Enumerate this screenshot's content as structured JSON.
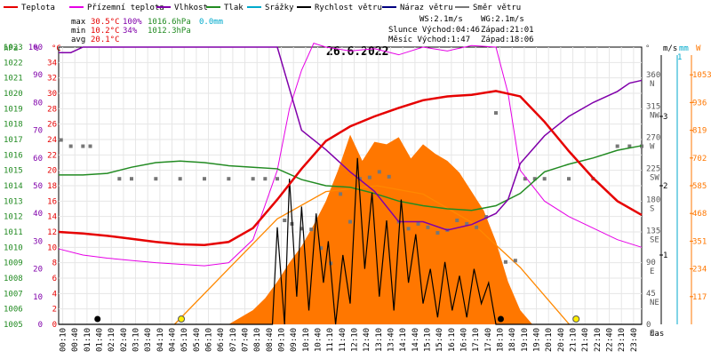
{
  "legend": [
    {
      "label": "Teplota",
      "color": "#e60000"
    },
    {
      "label": "Přízemní teplota",
      "color": "#e600e6"
    },
    {
      "label": "Vlhkost",
      "color": "#8000aa"
    },
    {
      "label": "Tlak",
      "color": "#228b22"
    },
    {
      "label": "Srážky",
      "color": "#00aacc"
    },
    {
      "label": "Rychlost větru",
      "color": "#000000"
    },
    {
      "label": "Náraz větru",
      "color": "#000080"
    },
    {
      "label": "Směr větru",
      "color": "#777777"
    }
  ],
  "stats": {
    "max_label": "max",
    "max_temp": "30.5°C",
    "max_hum": "100%",
    "max_press": "1016.6hPa",
    "max_rain": "0.0mm",
    "min_label": "min",
    "min_temp": "10.2°C",
    "min_hum": "34%",
    "min_press": "1012.3hPa",
    "avg_label": "avg",
    "avg_temp": "20.1°C"
  },
  "info": {
    "ws": "WS:2.1m/s",
    "wg": "WG:2.1m/s",
    "slunce": "Slunce Východ:04:46",
    "slunce_zapad": "Západ:21:01",
    "mesic": "Měsíc  Východ:1:47",
    "mesic_zapad": "Západ:18:06"
  },
  "axis_headers": {
    "hpa": "hPa",
    "pct": "%",
    "degc": "°C",
    "deg": "°",
    "ms": "m/s",
    "mm": "mm",
    "w": "W",
    "time": "čas"
  },
  "colors": {
    "temp": "#e60000",
    "ground": "#e600e6",
    "humidity": "#8000aa",
    "pressure": "#228b22",
    "rain": "#00aacc",
    "wind": "#000000",
    "gust": "#000080",
    "direction": "#777777",
    "solar": "#ff7700",
    "sunline": "#ff8800"
  },
  "chart_data": {
    "type": "line",
    "title": "26.6.2022",
    "x_labels": [
      "00:10",
      "00:40",
      "01:10",
      "01:40",
      "02:10",
      "02:40",
      "03:10",
      "03:40",
      "04:10",
      "04:40",
      "05:10",
      "05:40",
      "06:10",
      "06:40",
      "07:10",
      "07:40",
      "08:10",
      "08:40",
      "09:10",
      "09:40",
      "10:10",
      "10:40",
      "11:10",
      "11:40",
      "12:10",
      "12:40",
      "13:10",
      "13:40",
      "14:10",
      "14:40",
      "15:10",
      "15:40",
      "16:10",
      "16:40",
      "17:10",
      "17:40",
      "18:10",
      "18:40",
      "19:10",
      "19:40",
      "20:10",
      "20:40",
      "21:10",
      "21:40",
      "22:10",
      "22:40",
      "23:10",
      "23:40"
    ],
    "axes": {
      "pressure": {
        "min": 1005,
        "max": 1023,
        "ticks": [
          1005,
          1006,
          1007,
          1008,
          1009,
          1010,
          1011,
          1012,
          1013,
          1014,
          1015,
          1016,
          1017,
          1018,
          1019,
          1020,
          1021,
          1022,
          1023
        ]
      },
      "humidity": {
        "min": 0,
        "max": 100,
        "ticks": [
          0,
          10,
          20,
          30,
          40,
          50,
          60,
          70,
          80,
          90,
          100
        ]
      },
      "temperature": {
        "min": 0,
        "max": 36,
        "ticks": [
          0,
          2,
          4,
          6,
          8,
          10,
          12,
          14,
          16,
          18,
          20,
          22,
          24,
          26,
          28,
          30,
          32,
          34
        ]
      },
      "direction": {
        "ticks": [
          {
            "v": 0,
            "l": "0"
          },
          {
            "v": 45,
            "l": "45"
          },
          {
            "v": 90,
            "l": "90"
          },
          {
            "v": 135,
            "l": "135"
          },
          {
            "v": 180,
            "l": "180"
          },
          {
            "v": 225,
            "l": "225"
          },
          {
            "v": 270,
            "l": "270"
          },
          {
            "v": 315,
            "l": "315"
          },
          {
            "v": 360,
            "l": "360"
          }
        ],
        "compass": [
          "N",
          "NE",
          "E",
          "SE",
          "S",
          "SW",
          "W",
          "NW",
          "N"
        ]
      },
      "wind": {
        "min": 0,
        "max": 4,
        "ticks": [
          1,
          2,
          3
        ]
      },
      "rain_top": "1",
      "solar": {
        "min": 0,
        "max": 1170,
        "ticks": [
          117,
          234,
          351,
          468,
          585,
          702,
          819,
          936,
          1053
        ]
      }
    },
    "series": [
      {
        "key": "temp",
        "x": [
          0,
          1,
          2,
          3,
          4,
          5,
          6,
          7,
          8,
          9,
          10,
          11,
          12,
          13,
          14,
          15,
          16,
          17,
          18,
          19,
          20,
          21,
          22,
          23,
          24
        ],
        "y": [
          12.0,
          11.8,
          11.5,
          11.1,
          10.7,
          10.4,
          10.3,
          10.7,
          12.5,
          16.2,
          20.2,
          23.8,
          25.7,
          27.0,
          28.1,
          29.1,
          29.6,
          29.8,
          30.3,
          29.6,
          26.3,
          22.5,
          19.0,
          16.0,
          14.2
        ]
      },
      {
        "key": "ground",
        "x": [
          0,
          1,
          2,
          3,
          4,
          5,
          6,
          7,
          8,
          9,
          9.5,
          10,
          10.5,
          11,
          12,
          13,
          14,
          15,
          16,
          17,
          18,
          18.5,
          19,
          20,
          21,
          22,
          23,
          24
        ],
        "y": [
          9.8,
          9.0,
          8.6,
          8.3,
          8.0,
          7.8,
          7.6,
          8.0,
          11.0,
          20.0,
          28.0,
          33.0,
          36.5,
          36.0,
          35.5,
          35.8,
          35.0,
          36.0,
          35.5,
          36.2,
          36.0,
          30.0,
          20.0,
          16.0,
          14.0,
          12.5,
          11.0,
          10.0
        ]
      },
      {
        "key": "humidity",
        "x": [
          0,
          0.5,
          1,
          2,
          3,
          4,
          5,
          6,
          7,
          8,
          9,
          9.5,
          10,
          11,
          12,
          13,
          14,
          15,
          16,
          17,
          18,
          18.5,
          19,
          20,
          21,
          22,
          23,
          23.5,
          24
        ],
        "y": [
          98,
          98,
          100,
          100,
          100,
          100,
          100,
          100,
          100,
          100,
          100,
          85,
          70,
          63,
          55,
          48,
          37,
          37,
          34,
          36,
          40,
          45,
          58,
          68,
          75,
          80,
          84,
          87,
          88
        ]
      },
      {
        "key": "pressure",
        "x": [
          0,
          1,
          2,
          3,
          4,
          5,
          6,
          7,
          8,
          9,
          10,
          11,
          12,
          13,
          14,
          15,
          16,
          17,
          18,
          19,
          20,
          21,
          22,
          23,
          24
        ],
        "y": [
          1014.7,
          1014.7,
          1014.8,
          1015.2,
          1015.5,
          1015.6,
          1015.5,
          1015.3,
          1015.2,
          1015.1,
          1014.4,
          1014.0,
          1013.9,
          1013.5,
          1013.0,
          1012.7,
          1012.5,
          1012.4,
          1012.7,
          1013.5,
          1014.9,
          1015.4,
          1015.8,
          1016.3,
          1016.6
        ]
      },
      {
        "key": "wind",
        "x": [
          0,
          1,
          2,
          3,
          4,
          5,
          6,
          7,
          8,
          8.8,
          9,
          9.3,
          9.5,
          9.8,
          10,
          10.3,
          10.6,
          10.9,
          11.1,
          11.4,
          11.7,
          12,
          12.3,
          12.6,
          12.9,
          13.2,
          13.5,
          13.8,
          14.1,
          14.4,
          14.7,
          15,
          15.3,
          15.6,
          15.9,
          16.2,
          16.5,
          16.8,
          17.1,
          17.4,
          17.7,
          18,
          18.3,
          19,
          20,
          21,
          22,
          23,
          24
        ],
        "y": [
          0,
          0,
          0,
          0,
          0,
          0,
          0,
          0,
          0,
          0,
          1.4,
          0,
          2.1,
          0.4,
          1.7,
          0.2,
          1.6,
          0.6,
          1.2,
          0,
          1.0,
          0.3,
          2.4,
          0.8,
          1.9,
          0.4,
          1.5,
          0.2,
          1.8,
          0.6,
          1.3,
          0.3,
          0.8,
          0.1,
          0.9,
          0.2,
          0.7,
          0.1,
          0.8,
          0.3,
          0.6,
          0,
          0,
          0,
          0,
          0,
          0,
          0,
          0
        ]
      },
      {
        "key": "solar",
        "x": [
          7,
          7.5,
          8,
          8.5,
          9,
          9.5,
          10,
          10.5,
          11,
          11.5,
          12,
          12.5,
          13,
          13.5,
          14,
          14.5,
          15,
          15.5,
          16,
          16.5,
          17,
          17.5,
          18,
          18.5,
          19,
          19.5
        ],
        "y": [
          0,
          30,
          60,
          110,
          180,
          260,
          330,
          420,
          520,
          650,
          800,
          690,
          770,
          760,
          790,
          700,
          760,
          720,
          690,
          640,
          560,
          480,
          350,
          180,
          60,
          0
        ]
      },
      {
        "key": "sun_elevation",
        "x": [
          4.77,
          7,
          9,
          11,
          13.1,
          15,
          17,
          19,
          21.02
        ],
        "y": [
          0,
          235,
          445,
          560,
          585,
          550,
          430,
          240,
          0
        ]
      }
    ],
    "direction_points": {
      "x": [
        0.1,
        0.5,
        1,
        1.3,
        2.5,
        3,
        4,
        5,
        6,
        7,
        8,
        8.5,
        9,
        9.3,
        9.6,
        10,
        10.4,
        10.8,
        11.2,
        11.6,
        12,
        12.4,
        12.8,
        13.2,
        13.6,
        14,
        14.4,
        14.8,
        15.2,
        15.6,
        16,
        16.4,
        16.8,
        17.2,
        17.6,
        18,
        18.4,
        18.8,
        19.2,
        19.6,
        20,
        21,
        22,
        23,
        23.5,
        24
      ],
      "y": [
        266,
        257,
        257,
        257,
        210,
        210,
        210,
        210,
        210,
        210,
        210,
        210,
        210,
        150,
        145,
        138,
        137,
        110,
        88,
        188,
        148,
        210,
        212,
        220,
        213,
        148,
        138,
        145,
        140,
        132,
        136,
        150,
        145,
        140,
        155,
        305,
        90,
        92,
        210,
        210,
        210,
        210,
        210,
        257,
        257,
        257
      ]
    },
    "sun_markers": [
      {
        "x": 5.05,
        "kind": "sunrise"
      },
      {
        "x": 21.3,
        "kind": "sunset"
      }
    ],
    "moon_markers": [
      {
        "x": 1.6,
        "kind": "moonrise"
      },
      {
        "x": 18.2,
        "kind": "moonset"
      }
    ]
  }
}
